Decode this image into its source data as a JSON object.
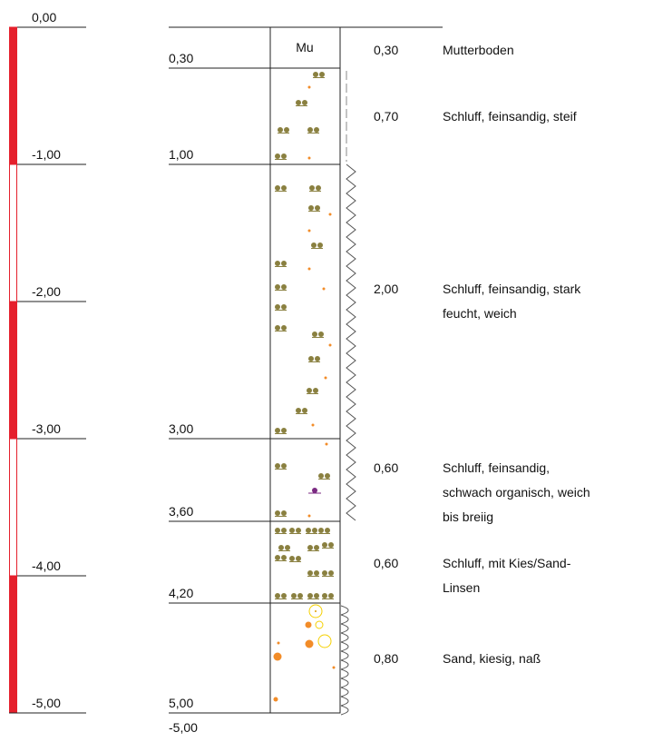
{
  "scale": {
    "labels": [
      "0,00",
      "-1,00",
      "-2,00",
      "-3,00",
      "-4,00",
      "-5,00"
    ]
  },
  "column": {
    "bottom_label": "-5,00"
  },
  "layers": [
    {
      "depth": "0,30",
      "symbol": "Mu",
      "thickness": "0,30",
      "description": [
        "Mutterboden"
      ]
    },
    {
      "depth": "1,00",
      "thickness": "0,70",
      "description": [
        "Schluff, feinsandig, steif"
      ]
    },
    {
      "depth": "3,00",
      "thickness": "2,00",
      "description": [
        "Schluff, feinsandig, stark",
        "feucht, weich"
      ]
    },
    {
      "depth": "3,60",
      "thickness": "0,60",
      "description": [
        "Schluff, feinsandig,",
        "schwach organisch, weich",
        "bis breiig"
      ]
    },
    {
      "depth": "4,20",
      "thickness": "0,60",
      "description": [
        "Schluff, mit Kies/Sand-",
        "Linsen"
      ]
    },
    {
      "depth": "5,00",
      "thickness": "0,80",
      "description": [
        "Sand, kiesig, naß"
      ]
    }
  ]
}
